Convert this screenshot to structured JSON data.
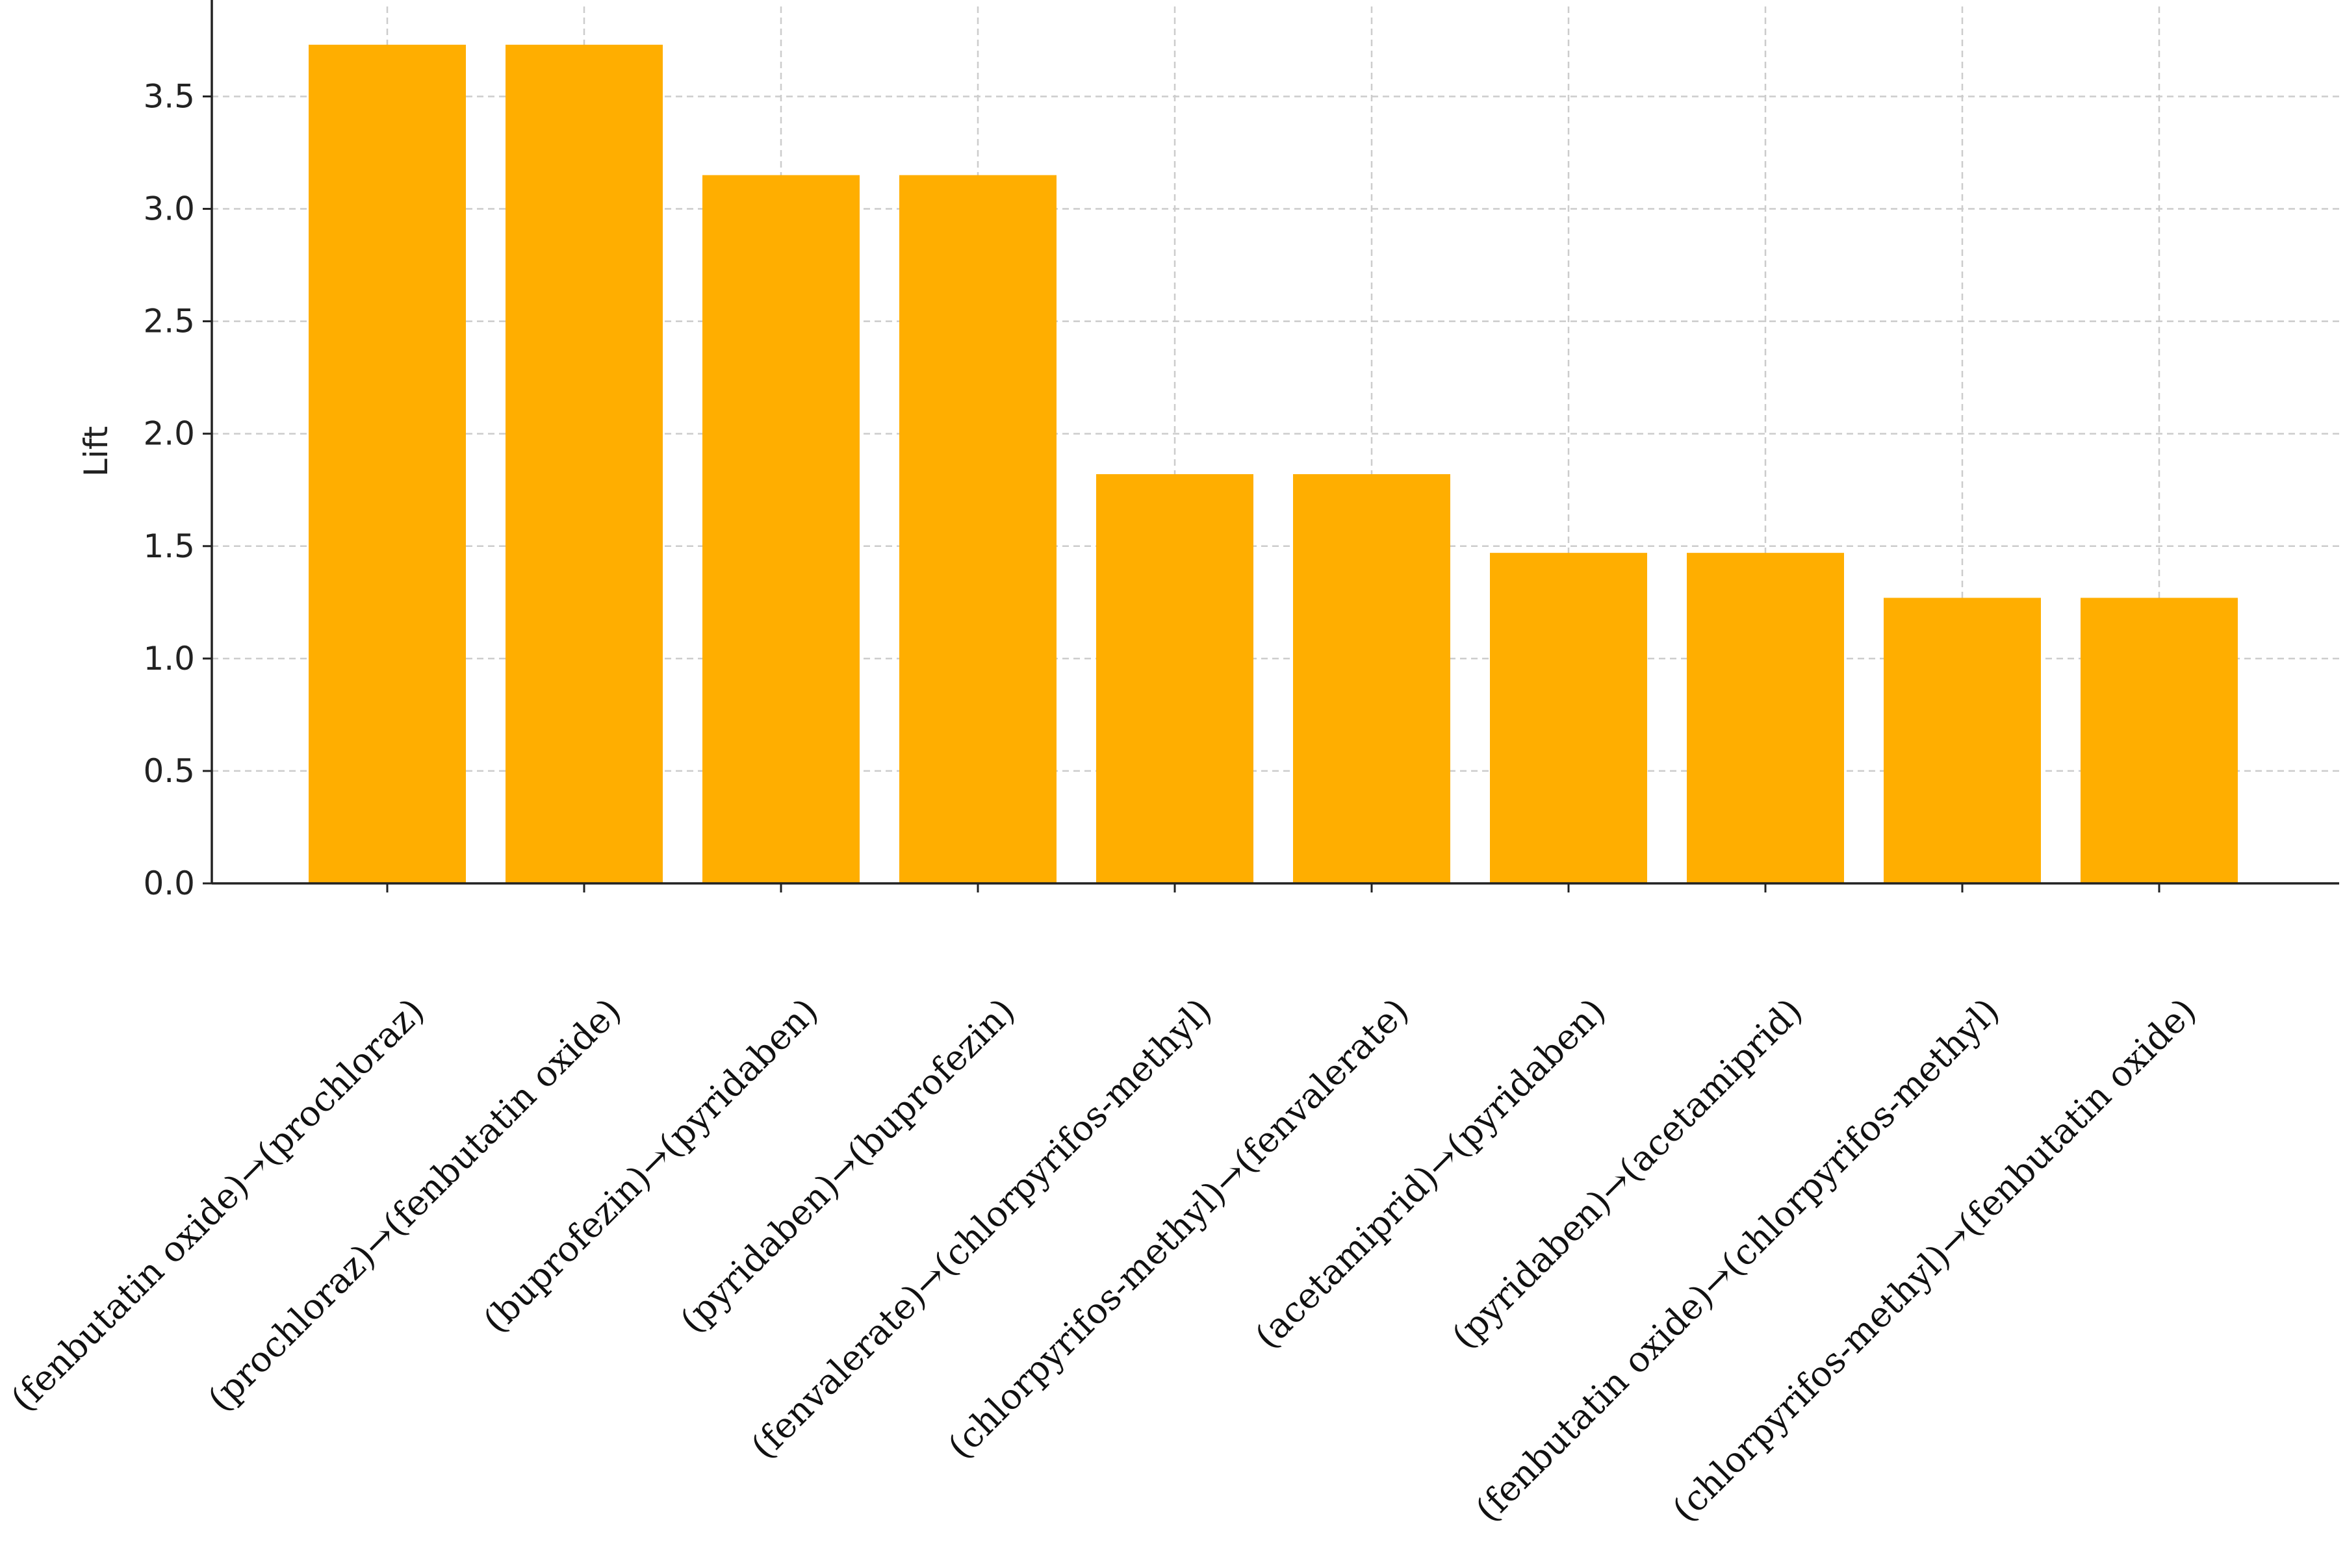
{
  "chart_data": {
    "type": "bar",
    "title": "",
    "xlabel": "",
    "ylabel": "Lift",
    "ylim": [
      0,
      3.9
    ],
    "yticks": [
      0.0,
      0.5,
      1.0,
      1.5,
      2.0,
      2.5,
      3.0,
      3.5
    ],
    "ytick_labels": [
      "0.0",
      "0.5",
      "1.0",
      "1.5",
      "2.0",
      "2.5",
      "3.0",
      "3.5"
    ],
    "grid": true,
    "bar_color": "#FFAE00",
    "grid_color": "#cccccc",
    "categories": [
      "(fenbutatin oxide)→(prochloraz)",
      "(prochloraz)→(fenbutatin oxide)",
      "(buprofezin)→(pyridaben)",
      "(pyridaben)→(buprofezin)",
      "(fenvalerate)→(chlorpyrifos-methyl)",
      "(chlorpyrifos-methyl)→(fenvalerate)",
      "(acetamiprid)→(pyridaben)",
      "(pyridaben)→(acetamiprid)",
      "(fenbutatin oxide)→(chlorpyrifos-methyl)",
      "(chlorpyrifos-methyl)→(fenbutatin oxide)"
    ],
    "values": [
      3.73,
      3.73,
      3.15,
      3.15,
      1.82,
      1.82,
      1.47,
      1.47,
      1.27,
      1.27
    ]
  }
}
